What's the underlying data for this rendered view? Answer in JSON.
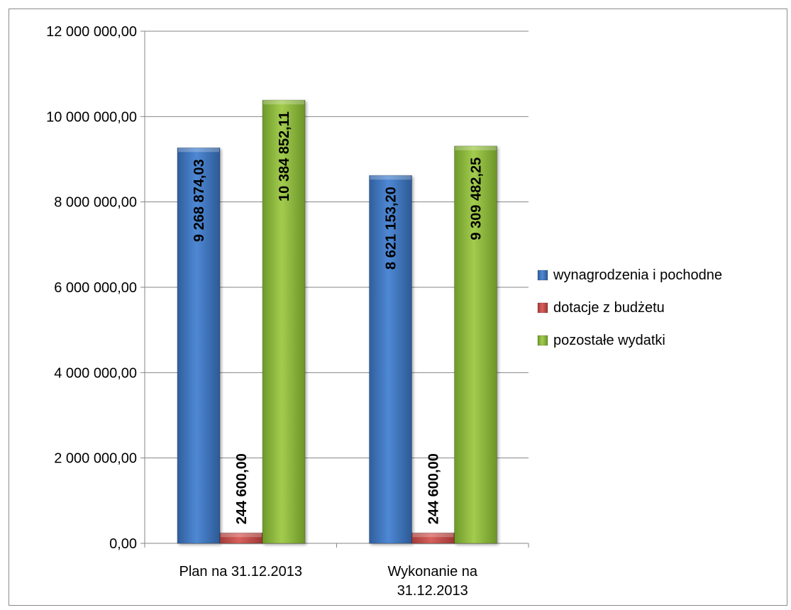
{
  "chart_data": {
    "type": "bar",
    "title": "",
    "xlabel": "",
    "ylabel": "",
    "categories": [
      "Plan na 31.12.2013",
      "Wykonanie na 31.12.2013"
    ],
    "category_lines": [
      [
        "Plan na 31.12.2013"
      ],
      [
        "Wykonanie na",
        "31.12.2013"
      ]
    ],
    "ylim": [
      0,
      12000000
    ],
    "yticks": [
      0,
      2000000,
      4000000,
      6000000,
      8000000,
      10000000,
      12000000
    ],
    "ytick_labels": [
      "0,00",
      "2 000 000,00",
      "4 000 000,00",
      "6 000 000,00",
      "8 000 000,00",
      "10 000 000,00",
      "12 000 000,00"
    ],
    "grid": true,
    "legend_position": "right",
    "series": [
      {
        "name": "wynagrodzenia i pochodne",
        "color": "#4a7ebb",
        "values": [
          9268874.03,
          8621153.2
        ],
        "labels": [
          "9 268 874,03",
          "8 621 153,20"
        ]
      },
      {
        "name": "dotacje z budżetu",
        "color": "#c0504d",
        "values": [
          244600.0,
          244600.0
        ],
        "labels": [
          "244 600,00",
          "244 600,00"
        ]
      },
      {
        "name": "pozostałe wydatki",
        "color": "#8db33f",
        "values": [
          10384852.11,
          9309482.25
        ],
        "labels": [
          "10 384 852,11",
          "9 309 482,25"
        ]
      }
    ]
  }
}
